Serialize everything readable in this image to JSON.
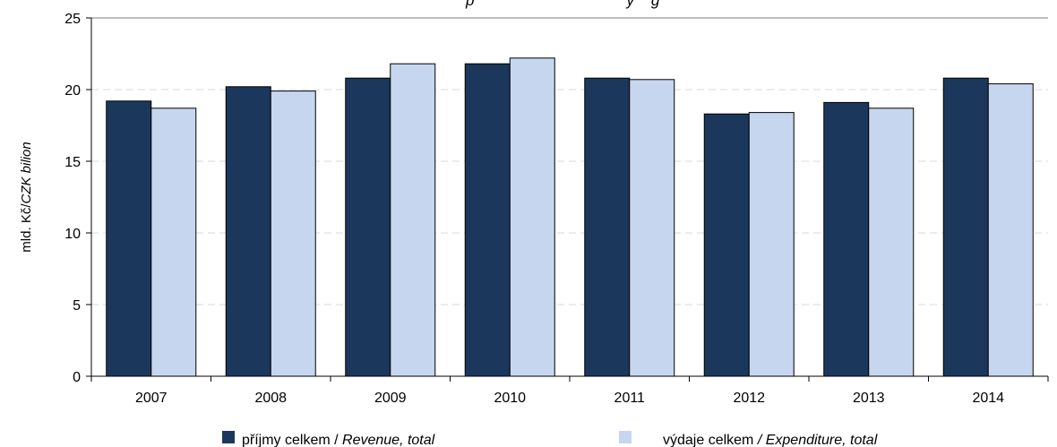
{
  "chart_data": {
    "type": "bar",
    "title_visible_fragment": "p                                    y    g",
    "categories": [
      "2007",
      "2008",
      "2009",
      "2010",
      "2011",
      "2012",
      "2013",
      "2014"
    ],
    "series": [
      {
        "name": "příjmy celkem / Revenue, total",
        "name_plain": "příjmy celkem / ",
        "name_italic": "Revenue, total",
        "color": "#1c375c",
        "values": [
          19.2,
          20.2,
          20.8,
          21.8,
          20.8,
          18.3,
          19.1,
          20.8
        ]
      },
      {
        "name": "výdaje celkem / Expenditure, total",
        "name_plain": "výdaje celkem ",
        "name_italic": "/ Expenditure, total",
        "color": "#c6d6ee",
        "values": [
          18.7,
          19.9,
          21.8,
          22.2,
          20.7,
          18.4,
          18.7,
          20.4
        ]
      }
    ],
    "ylabel_plain": "mld. Kč/",
    "ylabel_italic": "CZK bilion",
    "ylim": [
      0,
      25
    ],
    "yticks": [
      "0",
      "5",
      "10",
      "15",
      "20",
      "25"
    ],
    "grid": true,
    "legend_position": "bottom"
  }
}
